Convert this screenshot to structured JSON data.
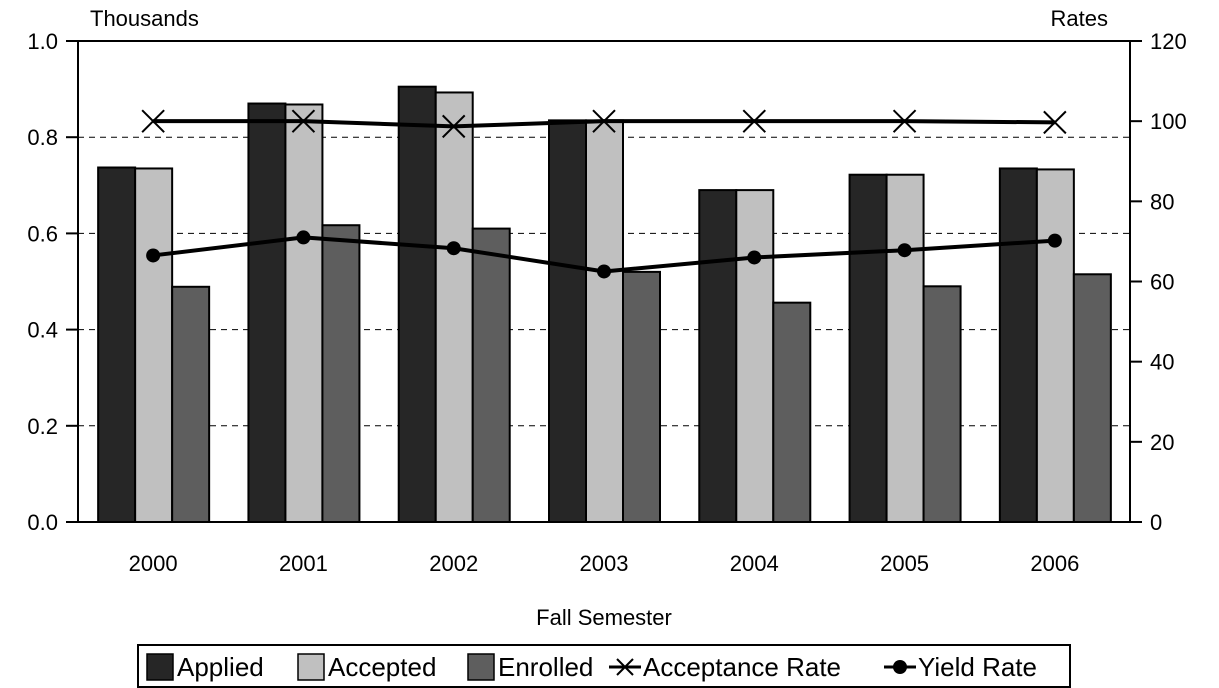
{
  "chart_data": {
    "type": "bar",
    "categories": [
      "2000",
      "2001",
      "2002",
      "2003",
      "2004",
      "2005",
      "2006"
    ],
    "xlabel": "Fall Semester",
    "ylabel_left": "Thousands",
    "ylabel_right": "Rates",
    "ylim_left": [
      0,
      1.0
    ],
    "ylim_right": [
      0,
      120
    ],
    "yticks_left": [
      "0.0",
      "0.2",
      "0.4",
      "0.6",
      "0.8",
      "1.0"
    ],
    "yticks_right": [
      "0",
      "20",
      "40",
      "60",
      "80",
      "100",
      "120"
    ],
    "grid": "horizontal dashed",
    "legend_position": "bottom",
    "series": [
      {
        "name": "Applied",
        "kind": "bar",
        "axis": "left",
        "color": "#262626",
        "values": [
          0.737,
          0.87,
          0.905,
          0.835,
          0.69,
          0.722,
          0.735
        ]
      },
      {
        "name": "Accepted",
        "kind": "bar",
        "axis": "left",
        "color": "#c0c0c0",
        "values": [
          0.735,
          0.868,
          0.893,
          0.835,
          0.69,
          0.722,
          0.733
        ]
      },
      {
        "name": "Enrolled",
        "kind": "bar",
        "axis": "left",
        "color": "#5e5e5e",
        "values": [
          0.489,
          0.617,
          0.61,
          0.52,
          0.456,
          0.49,
          0.515
        ]
      },
      {
        "name": "Acceptance Rate",
        "kind": "line",
        "marker": "x",
        "axis": "right",
        "color": "#000000",
        "values": [
          100,
          100,
          98.7,
          100,
          100,
          100,
          99.7
        ]
      },
      {
        "name": "Yield Rate",
        "kind": "line",
        "marker": "circle",
        "axis": "right",
        "color": "#000000",
        "values": [
          66.5,
          71,
          68.3,
          62.5,
          66,
          67.8,
          70.2
        ]
      }
    ]
  }
}
